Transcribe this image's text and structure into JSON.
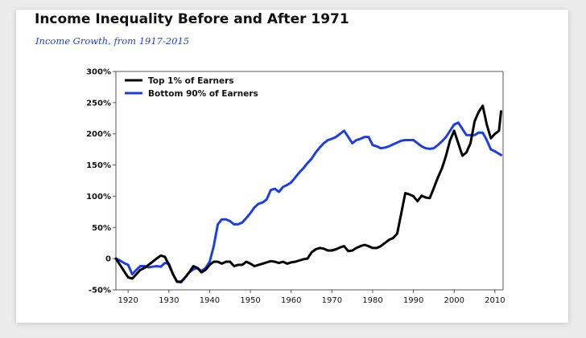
{
  "chart_data": {
    "type": "line",
    "title": "Income Inequality Before and After 1971",
    "subtitle": "Income Growth, from 1917-2015",
    "xlabel": "",
    "ylabel": "",
    "xlim": [
      1917,
      2012
    ],
    "ylim": [
      -50,
      300
    ],
    "x_ticks": [
      1920,
      1930,
      1940,
      1950,
      1960,
      1970,
      1980,
      1990,
      2000,
      2010
    ],
    "y_ticks": [
      {
        "value": 300,
        "label": "300%"
      },
      {
        "value": 250,
        "label": "250%"
      },
      {
        "value": 200,
        "label": "200%"
      },
      {
        "value": 150,
        "label": "150%"
      },
      {
        "value": 100,
        "label": "100%"
      },
      {
        "value": 50,
        "label": "50%"
      },
      {
        "value": 0,
        "label": "0"
      },
      {
        "value": -50,
        "label": "-50%"
      }
    ],
    "grid": false,
    "legend_position": "top-left",
    "series": [
      {
        "name": "Top 1% of Earners",
        "color": "#000000",
        "points": [
          [
            1917,
            0
          ],
          [
            1918,
            -10
          ],
          [
            1919,
            -20
          ],
          [
            1920,
            -30
          ],
          [
            1921,
            -32
          ],
          [
            1922,
            -25
          ],
          [
            1923,
            -18
          ],
          [
            1924,
            -15
          ],
          [
            1925,
            -10
          ],
          [
            1926,
            -5
          ],
          [
            1927,
            0
          ],
          [
            1928,
            5
          ],
          [
            1929,
            3
          ],
          [
            1930,
            -10
          ],
          [
            1931,
            -25
          ],
          [
            1932,
            -37
          ],
          [
            1933,
            -37
          ],
          [
            1934,
            -30
          ],
          [
            1935,
            -22
          ],
          [
            1936,
            -12
          ],
          [
            1937,
            -15
          ],
          [
            1938,
            -22
          ],
          [
            1939,
            -18
          ],
          [
            1940,
            -10
          ],
          [
            1941,
            -5
          ],
          [
            1942,
            -5
          ],
          [
            1943,
            -8
          ],
          [
            1944,
            -5
          ],
          [
            1945,
            -5
          ],
          [
            1946,
            -12
          ],
          [
            1947,
            -10
          ],
          [
            1948,
            -10
          ],
          [
            1949,
            -5
          ],
          [
            1950,
            -8
          ],
          [
            1951,
            -12
          ],
          [
            1952,
            -10
          ],
          [
            1953,
            -8
          ],
          [
            1954,
            -6
          ],
          [
            1955,
            -4
          ],
          [
            1956,
            -5
          ],
          [
            1957,
            -7
          ],
          [
            1958,
            -5
          ],
          [
            1959,
            -8
          ],
          [
            1960,
            -6
          ],
          [
            1961,
            -5
          ],
          [
            1962,
            -3
          ],
          [
            1963,
            -1
          ],
          [
            1964,
            0
          ],
          [
            1965,
            10
          ],
          [
            1966,
            15
          ],
          [
            1967,
            17
          ],
          [
            1968,
            16
          ],
          [
            1969,
            13
          ],
          [
            1970,
            13
          ],
          [
            1971,
            15
          ],
          [
            1972,
            18
          ],
          [
            1973,
            20
          ],
          [
            1974,
            12
          ],
          [
            1975,
            13
          ],
          [
            1976,
            17
          ],
          [
            1977,
            20
          ],
          [
            1978,
            22
          ],
          [
            1979,
            20
          ],
          [
            1980,
            17
          ],
          [
            1981,
            17
          ],
          [
            1982,
            20
          ],
          [
            1983,
            25
          ],
          [
            1984,
            30
          ],
          [
            1985,
            33
          ],
          [
            1986,
            40
          ],
          [
            1987,
            72
          ],
          [
            1988,
            105
          ],
          [
            1989,
            103
          ],
          [
            1990,
            100
          ],
          [
            1991,
            92
          ],
          [
            1992,
            101
          ],
          [
            1993,
            98
          ],
          [
            1994,
            97
          ],
          [
            1995,
            113
          ],
          [
            1996,
            130
          ],
          [
            1997,
            145
          ],
          [
            1998,
            165
          ],
          [
            1999,
            190
          ],
          [
            2000,
            205
          ],
          [
            2001,
            185
          ],
          [
            2002,
            165
          ],
          [
            2003,
            170
          ],
          [
            2004,
            185
          ],
          [
            2005,
            220
          ],
          [
            2006,
            235
          ],
          [
            2007,
            245
          ],
          [
            2008,
            215
          ],
          [
            2009,
            193
          ],
          [
            2010,
            200
          ],
          [
            2011,
            205
          ],
          [
            2011.5,
            236
          ]
        ]
      },
      {
        "name": "Bottom 90% of Earners",
        "color": "#1a3fe6",
        "points": [
          [
            1917,
            0
          ],
          [
            1918,
            -3
          ],
          [
            1919,
            -7
          ],
          [
            1920,
            -10
          ],
          [
            1921,
            -25
          ],
          [
            1922,
            -18
          ],
          [
            1923,
            -12
          ],
          [
            1924,
            -12
          ],
          [
            1925,
            -14
          ],
          [
            1926,
            -13
          ],
          [
            1927,
            -12
          ],
          [
            1928,
            -13
          ],
          [
            1929,
            -7
          ],
          [
            1930,
            -8
          ],
          [
            1931,
            -25
          ],
          [
            1932,
            -37
          ],
          [
            1933,
            -38
          ],
          [
            1934,
            -30
          ],
          [
            1935,
            -22
          ],
          [
            1936,
            -17
          ],
          [
            1937,
            -15
          ],
          [
            1938,
            -20
          ],
          [
            1939,
            -15
          ],
          [
            1940,
            -5
          ],
          [
            1941,
            20
          ],
          [
            1942,
            55
          ],
          [
            1943,
            63
          ],
          [
            1944,
            63
          ],
          [
            1945,
            60
          ],
          [
            1946,
            55
          ],
          [
            1947,
            55
          ],
          [
            1948,
            58
          ],
          [
            1949,
            65
          ],
          [
            1950,
            73
          ],
          [
            1951,
            82
          ],
          [
            1952,
            88
          ],
          [
            1953,
            90
          ],
          [
            1954,
            95
          ],
          [
            1955,
            110
          ],
          [
            1956,
            112
          ],
          [
            1957,
            107
          ],
          [
            1958,
            115
          ],
          [
            1959,
            118
          ],
          [
            1960,
            122
          ],
          [
            1961,
            130
          ],
          [
            1962,
            138
          ],
          [
            1963,
            145
          ],
          [
            1964,
            153
          ],
          [
            1965,
            160
          ],
          [
            1966,
            170
          ],
          [
            1967,
            178
          ],
          [
            1968,
            185
          ],
          [
            1969,
            190
          ],
          [
            1970,
            192
          ],
          [
            1971,
            195
          ],
          [
            1972,
            200
          ],
          [
            1973,
            205
          ],
          [
            1974,
            195
          ],
          [
            1975,
            185
          ],
          [
            1976,
            190
          ],
          [
            1977,
            192
          ],
          [
            1978,
            195
          ],
          [
            1979,
            195
          ],
          [
            1980,
            182
          ],
          [
            1981,
            180
          ],
          [
            1982,
            177
          ],
          [
            1983,
            178
          ],
          [
            1984,
            180
          ],
          [
            1985,
            183
          ],
          [
            1986,
            186
          ],
          [
            1987,
            189
          ],
          [
            1988,
            190
          ],
          [
            1989,
            190
          ],
          [
            1990,
            190
          ],
          [
            1991,
            185
          ],
          [
            1992,
            180
          ],
          [
            1993,
            177
          ],
          [
            1994,
            176
          ],
          [
            1995,
            177
          ],
          [
            1996,
            182
          ],
          [
            1997,
            188
          ],
          [
            1998,
            195
          ],
          [
            1999,
            205
          ],
          [
            2000,
            215
          ],
          [
            2001,
            218
          ],
          [
            2002,
            208
          ],
          [
            2003,
            198
          ],
          [
            2004,
            198
          ],
          [
            2005,
            198
          ],
          [
            2006,
            202
          ],
          [
            2007,
            202
          ],
          [
            2008,
            190
          ],
          [
            2009,
            175
          ],
          [
            2010,
            172
          ],
          [
            2011,
            168
          ],
          [
            2011.5,
            166
          ]
        ]
      }
    ]
  }
}
